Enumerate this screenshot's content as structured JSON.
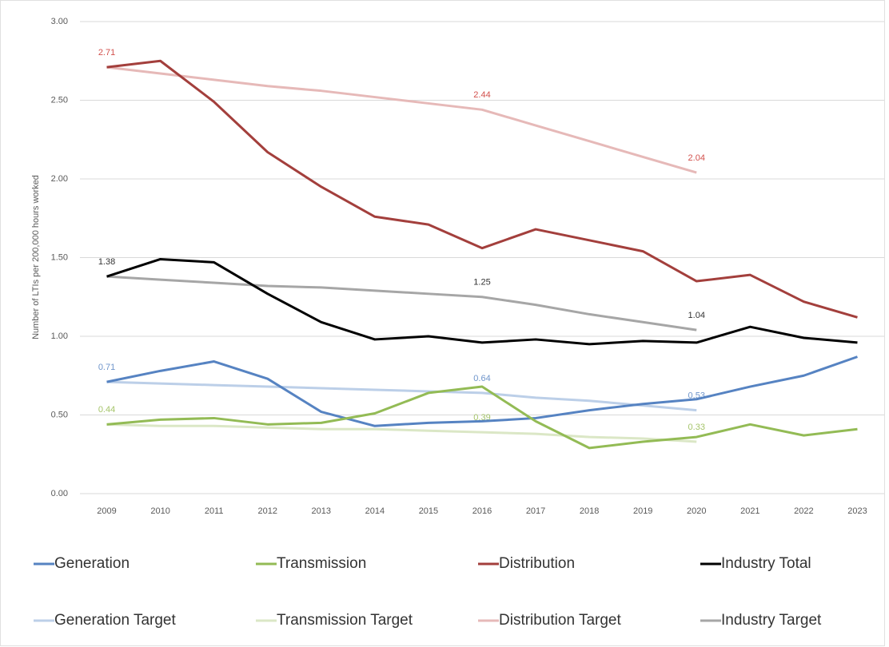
{
  "chart_data": {
    "type": "line",
    "y_label": "Number of LTIs per 200,000 hours worked",
    "categories": [
      "2009",
      "2010",
      "2011",
      "2012",
      "2013",
      "2014",
      "2015",
      "2016",
      "2017",
      "2018",
      "2019",
      "2020",
      "2021",
      "2022",
      "2023"
    ],
    "ylim": [
      0,
      3
    ],
    "yticks": [
      {
        "value": 0,
        "label": "0.00"
      },
      {
        "value": 0.5,
        "label": "0.50"
      },
      {
        "value": 1,
        "label": "1.00"
      },
      {
        "value": 1.5,
        "label": "1.50"
      },
      {
        "value": 2,
        "label": "2.00"
      },
      {
        "value": 2.5,
        "label": "2.50"
      },
      {
        "value": 3,
        "label": "3.00"
      }
    ],
    "grid": true,
    "legend": "bottom",
    "series": [
      {
        "name": "Generation",
        "color": "#5683c2",
        "values": [
          0.71,
          0.78,
          0.84,
          0.73,
          0.52,
          0.43,
          0.45,
          0.46,
          0.48,
          0.53,
          0.57,
          0.6,
          0.68,
          0.75,
          0.87
        ]
      },
      {
        "name": "Transmission",
        "color": "#93bb55",
        "values": [
          0.44,
          0.47,
          0.48,
          0.44,
          0.45,
          0.51,
          0.64,
          0.68,
          0.46,
          0.29,
          0.33,
          0.36,
          0.44,
          0.37,
          0.41
        ]
      },
      {
        "name": "Distribution",
        "color": "#a33f3c",
        "values": [
          2.71,
          2.75,
          2.49,
          2.17,
          1.95,
          1.76,
          1.71,
          1.56,
          1.68,
          1.61,
          1.54,
          1.35,
          1.39,
          1.22,
          1.12
        ]
      },
      {
        "name": "Industry Total",
        "color": "#000000",
        "values": [
          1.38,
          1.49,
          1.47,
          1.27,
          1.09,
          0.98,
          1.0,
          0.96,
          0.98,
          0.95,
          0.97,
          0.96,
          1.06,
          0.99,
          0.96
        ]
      },
      {
        "name": "Generation Target",
        "color": "#bccfe8",
        "label_color": "#6f95cb",
        "values": [
          0.71,
          0.7,
          0.69,
          0.68,
          0.67,
          0.66,
          0.65,
          0.64,
          0.61,
          0.59,
          0.56,
          0.53,
          null,
          null,
          null
        ],
        "value_labels": [
          "0.71",
          null,
          null,
          null,
          null,
          null,
          null,
          "0.64",
          null,
          null,
          null,
          "0.53",
          null,
          null,
          null
        ]
      },
      {
        "name": "Transmission Target",
        "color": "#dbe7c6",
        "label_color": "#a5c46a",
        "values": [
          0.44,
          0.43,
          0.43,
          0.42,
          0.41,
          0.41,
          0.4,
          0.39,
          0.38,
          0.36,
          0.35,
          0.33,
          null,
          null,
          null
        ],
        "value_labels": [
          "0.44",
          null,
          null,
          null,
          null,
          null,
          null,
          "0.39",
          null,
          null,
          null,
          "0.33",
          null,
          null,
          null
        ]
      },
      {
        "name": "Distribution Target",
        "color": "#e6b9b8",
        "label_color": "#d2504c",
        "values": [
          2.71,
          2.67,
          2.63,
          2.59,
          2.56,
          2.52,
          2.48,
          2.44,
          2.34,
          2.24,
          2.14,
          2.04,
          null,
          null,
          null
        ],
        "value_labels": [
          "2.71",
          null,
          null,
          null,
          null,
          null,
          null,
          "2.44",
          null,
          null,
          null,
          "2.04",
          null,
          null,
          null
        ]
      },
      {
        "name": "Industry Target",
        "color": "#a6a6a6",
        "label_color": "#333333",
        "values": [
          1.38,
          1.36,
          1.34,
          1.32,
          1.31,
          1.29,
          1.27,
          1.25,
          1.2,
          1.14,
          1.09,
          1.04,
          null,
          null,
          null
        ],
        "value_labels": [
          "1.38",
          null,
          null,
          null,
          null,
          null,
          null,
          "1.25",
          null,
          null,
          null,
          "1.04",
          null,
          null,
          null
        ]
      }
    ]
  }
}
